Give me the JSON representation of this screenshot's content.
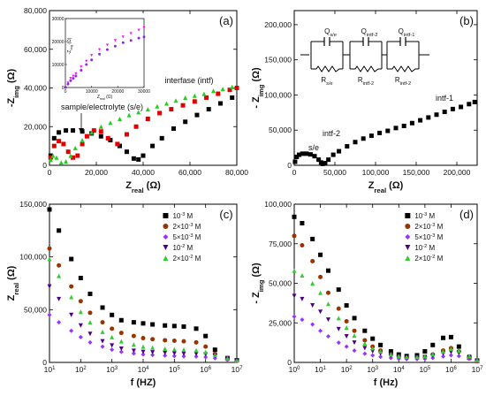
{
  "chart_data": [
    {
      "panel": "(a)",
      "type": "scatter",
      "xlabel": "Z_real (Ω)",
      "ylabel": "-Z_img (Ω)",
      "xlim": [
        0,
        80000
      ],
      "ylim": [
        0,
        80000
      ],
      "xticks": [
        "0",
        "20,000",
        "40,000",
        "60,000",
        "80,000"
      ],
      "yticks": [
        "0",
        "20,000",
        "40,000",
        "60,000",
        "80,000"
      ],
      "annotations": [
        "interfase (intf)",
        "sample/electrolyte (s/e)"
      ],
      "series": [
        {
          "color": "#000000",
          "marker": "square",
          "x": [
            500,
            2000,
            4000,
            7000,
            10000,
            14000,
            18000,
            22000,
            26000,
            30000,
            33000,
            36000,
            38000,
            40000,
            44000,
            48000,
            53000,
            58000,
            63000,
            68000,
            73000,
            78000
          ],
          "y": [
            5000,
            14000,
            17000,
            18000,
            18000,
            17500,
            16500,
            15000,
            13000,
            10000,
            7000,
            3500,
            3000,
            5000,
            10000,
            14000,
            19000,
            22500,
            26000,
            29000,
            32000,
            35000
          ]
        },
        {
          "color": "#e00000",
          "marker": "square",
          "x": [
            500,
            2000,
            4000,
            6000,
            8000,
            10000,
            12000,
            14000,
            16000,
            19000,
            22000,
            25000,
            29000,
            33000,
            37000,
            42000,
            47000,
            52000,
            57000,
            62000,
            67000,
            72000,
            77000,
            80000
          ],
          "y": [
            4000,
            10000,
            12500,
            11000,
            7000,
            4000,
            5000,
            11000,
            15000,
            18000,
            17500,
            14000,
            11000,
            16000,
            20000,
            24000,
            27000,
            29000,
            31000,
            33000,
            35000,
            37000,
            39000,
            40000
          ]
        },
        {
          "color": "#22cc22",
          "marker": "triangle",
          "x": [
            500,
            1500,
            3000,
            5000,
            7000,
            9000,
            11000,
            14000,
            18000,
            22000,
            26000,
            30000,
            34000,
            38000,
            42000,
            46000,
            50000,
            54000,
            58000,
            62000,
            66000,
            70000,
            74000,
            78000
          ],
          "y": [
            3000,
            5000,
            4000,
            1500,
            2000,
            5000,
            9000,
            13000,
            17000,
            20000,
            22000,
            24000,
            26000,
            27500,
            29000,
            30500,
            32000,
            33500,
            35000,
            36000,
            37000,
            38500,
            39500,
            40500
          ]
        }
      ],
      "inset": {
        "xlabel": "Z_real (Ω)",
        "ylabel": "-Z_img (Ω)",
        "xticks": [
          "0",
          "10000",
          "20000",
          "30000"
        ],
        "yticks": [
          "0",
          "10000",
          "20000",
          "30000"
        ],
        "series": [
          {
            "color": "#ff00ff",
            "marker": "triangle-down",
            "x": [
              0,
              1000,
              2000,
              3000,
              4000,
              6000,
              8000,
              10000,
              13000,
              16000,
              19000,
              22000,
              25000,
              28000,
              30000
            ],
            "y": [
              0,
              2000,
              4000,
              5000,
              6000,
              9000,
              11500,
              14000,
              16500,
              18500,
              20500,
              22000,
              23500,
              25000,
              26000
            ]
          },
          {
            "color": "#8a2be2",
            "marker": "circle",
            "x": [
              0,
              1000,
              2000,
              3000,
              4000,
              6000,
              8000,
              10000,
              13000,
              16000,
              19000,
              22000,
              25000,
              28000,
              30000
            ],
            "y": [
              0,
              1500,
              3000,
              4000,
              5000,
              7500,
              10000,
              12000,
              14500,
              16500,
              18000,
              19500,
              20500,
              21500,
              22000
            ]
          }
        ]
      }
    },
    {
      "panel": "(b)",
      "type": "scatter",
      "xlabel": "Z_real (Ω)",
      "ylabel": "- Z_img (Ω)",
      "xlim": [
        0,
        225000
      ],
      "ylim": [
        0,
        220000
      ],
      "xticks": [
        "0",
        "50,000",
        "100,000",
        "150,000",
        "200,000"
      ],
      "yticks": [
        "0",
        "50,000",
        "100,000",
        "150,000",
        "200,000"
      ],
      "annotations": [
        "s/e",
        "intf-2",
        "intf-1"
      ],
      "circuit_labels": [
        "Q_s/e",
        "Q_intf-2",
        "Q_intf-1",
        "R_s/e",
        "R_intf-2",
        "R_intf-2"
      ],
      "series": [
        {
          "color": "#000000",
          "marker": "square",
          "x": [
            1000,
            3000,
            6000,
            10000,
            15000,
            20000,
            25000,
            30000,
            33000,
            35000,
            38000,
            42000,
            48000,
            55000,
            65000,
            75000,
            85000,
            95000,
            105000,
            115000,
            125000,
            135000,
            145000,
            155000,
            165000,
            175000,
            185000,
            195000,
            205000,
            215000,
            222000
          ],
          "y": [
            5000,
            12000,
            15000,
            16500,
            16500,
            15500,
            13000,
            8000,
            4000,
            2000,
            3000,
            8000,
            15000,
            20000,
            27000,
            33000,
            38000,
            42000,
            46000,
            49000,
            53000,
            56000,
            60000,
            64000,
            68000,
            72000,
            76000,
            80000,
            83000,
            87000,
            90000
          ]
        }
      ]
    },
    {
      "panel": "(c)",
      "type": "scatter",
      "xlabel": "f (HZ)",
      "ylabel": "Z_real (Ω)",
      "xscale": "log",
      "xlim": [
        10,
        10000000
      ],
      "ylim": [
        0,
        150000
      ],
      "xticks": [
        "10^1",
        "10^2",
        "10^3",
        "10^4",
        "10^5",
        "10^6",
        "10^7"
      ],
      "yticks": [
        "0",
        "50,000",
        "100,000",
        "150,000"
      ],
      "legend_position": "top-right",
      "series": [
        {
          "name": "10^-3 M",
          "color": "#000000",
          "marker": "square",
          "x": [
            10,
            20,
            50,
            100,
            200,
            500,
            1000,
            2000,
            5000,
            10000,
            20000,
            50000,
            100000,
            200000,
            500000,
            1000000,
            2000000,
            5000000,
            10000000
          ],
          "y": [
            145000,
            125000,
            98000,
            80000,
            65000,
            52000,
            45000,
            40000,
            38000,
            37000,
            36000,
            35000,
            34500,
            34000,
            32000,
            25000,
            12000,
            4000,
            2000
          ]
        },
        {
          "name": "2×10^-3 M",
          "color": "#993300",
          "marker": "circle",
          "x": [
            10,
            20,
            50,
            100,
            200,
            500,
            1000,
            2000,
            5000,
            10000,
            20000,
            50000,
            100000,
            200000,
            500000,
            1000000,
            2000000,
            5000000,
            10000000
          ],
          "y": [
            108000,
            92000,
            72000,
            58000,
            47000,
            38000,
            32000,
            28000,
            25000,
            23000,
            22000,
            21000,
            20500,
            20000,
            19000,
            15000,
            8000,
            3000,
            1500
          ]
        },
        {
          "name": "5×10^-3 M",
          "color": "#9933ff",
          "marker": "diamond",
          "x": [
            10,
            20,
            50,
            100,
            200,
            500,
            1000,
            2000,
            5000,
            10000,
            20000,
            50000,
            100000,
            200000,
            500000,
            1000000,
            2000000,
            5000000,
            10000000
          ],
          "y": [
            45000,
            38000,
            30000,
            24000,
            19000,
            15000,
            12000,
            10000,
            8500,
            7500,
            7000,
            6500,
            6000,
            5800,
            5500,
            5000,
            4000,
            2500,
            1500
          ]
        },
        {
          "name": "10^-2 M",
          "color": "#4b0082",
          "marker": "triangle-down",
          "x": [
            10,
            20,
            50,
            100,
            200,
            500,
            1000,
            2000,
            5000,
            10000,
            20000,
            50000,
            100000,
            200000,
            500000,
            1000000,
            2000000,
            5000000,
            10000000
          ],
          "y": [
            72000,
            60000,
            45000,
            35000,
            27000,
            20000,
            16000,
            13000,
            11000,
            10000,
            9500,
            9000,
            8500,
            8200,
            8000,
            7500,
            6000,
            4000,
            2000
          ]
        },
        {
          "name": "2×10^-2 M",
          "color": "#33cc33",
          "marker": "triangle",
          "x": [
            10,
            20,
            50,
            100,
            200,
            500,
            1000,
            2000,
            5000,
            10000,
            20000,
            50000,
            100000,
            200000,
            500000,
            1000000,
            2000000,
            5000000,
            10000000
          ],
          "y": [
            98000,
            82000,
            62000,
            48000,
            38000,
            29000,
            24000,
            20000,
            17000,
            15000,
            14000,
            13000,
            12500,
            12000,
            11500,
            10000,
            7000,
            4000,
            2000
          ]
        }
      ]
    },
    {
      "panel": "(d)",
      "type": "scatter",
      "xlabel": "f (Hz)",
      "ylabel": "- Z_img (Ω)",
      "xscale": "log",
      "xlim": [
        1,
        10000000
      ],
      "ylim": [
        0,
        100000
      ],
      "xticks": [
        "10^0",
        "10^1",
        "10^2",
        "10^3",
        "10^4",
        "10^5",
        "10^6",
        "10^7"
      ],
      "yticks": [
        "0",
        "25,000",
        "50,000",
        "75,000",
        "100,000"
      ],
      "legend_position": "top-right",
      "series": [
        {
          "name": "10^-3 M",
          "color": "#000000",
          "marker": "square",
          "x": [
            1,
            2,
            5,
            10,
            20,
            50,
            100,
            200,
            500,
            1000,
            2000,
            5000,
            10000,
            20000,
            50000,
            100000,
            200000,
            500000,
            1000000,
            2000000,
            5000000,
            10000000
          ],
          "y": [
            92000,
            88000,
            78000,
            68000,
            58000,
            46000,
            36000,
            28000,
            20000,
            15000,
            11000,
            7000,
            5000,
            4000,
            4500,
            7000,
            11000,
            15500,
            16000,
            10000,
            3000,
            1000
          ]
        },
        {
          "name": "2×10^-3 M",
          "color": "#993300",
          "marker": "circle",
          "x": [
            1,
            2,
            5,
            10,
            20,
            50,
            100,
            200,
            500,
            1000,
            2000,
            5000,
            10000,
            20000,
            50000,
            100000,
            200000,
            500000,
            1000000,
            2000000,
            5000000,
            10000000
          ],
          "y": [
            80000,
            74000,
            64000,
            54000,
            44000,
            34000,
            26000,
            20000,
            14000,
            10000,
            7500,
            5000,
            3500,
            2800,
            2800,
            3500,
            5000,
            7500,
            9000,
            7000,
            2500,
            800
          ]
        },
        {
          "name": "5×10^-3 M",
          "color": "#9933ff",
          "marker": "diamond",
          "x": [
            1,
            2,
            5,
            10,
            20,
            50,
            100,
            200,
            500,
            1000,
            2000,
            5000,
            10000,
            20000,
            50000,
            100000,
            200000,
            500000,
            1000000,
            2000000,
            5000000,
            10000000
          ],
          "y": [
            29000,
            27000,
            24000,
            20000,
            16500,
            12500,
            10000,
            7500,
            5500,
            4500,
            3500,
            2800,
            2300,
            2000,
            2000,
            2200,
            2800,
            3800,
            4500,
            4000,
            2500,
            1000
          ]
        },
        {
          "name": "10^-2 M",
          "color": "#4b0082",
          "marker": "triangle-down",
          "x": [
            1,
            2,
            5,
            10,
            20,
            50,
            100,
            200,
            500,
            1000,
            2000,
            5000,
            10000,
            20000,
            50000,
            100000,
            200000,
            500000,
            1000000,
            2000000,
            5000000,
            10000000
          ],
          "y": [
            42000,
            40000,
            36000,
            32000,
            27000,
            21000,
            16500,
            12500,
            9000,
            7000,
            5500,
            4200,
            3500,
            3000,
            3000,
            3400,
            4200,
            5500,
            6500,
            6000,
            3500,
            1200
          ]
        },
        {
          "name": "2×10^-2 M",
          "color": "#33cc33",
          "marker": "triangle",
          "x": [
            1,
            2,
            5,
            10,
            20,
            50,
            100,
            200,
            500,
            1000,
            2000,
            5000,
            10000,
            20000,
            50000,
            100000,
            200000,
            500000,
            1000000,
            2000000,
            5000000,
            10000000
          ],
          "y": [
            58000,
            55000,
            50000,
            44000,
            37000,
            28000,
            22000,
            17000,
            12000,
            9000,
            7000,
            5000,
            4000,
            3500,
            3500,
            4000,
            5200,
            7000,
            8500,
            7500,
            4000,
            1500
          ]
        }
      ]
    }
  ]
}
